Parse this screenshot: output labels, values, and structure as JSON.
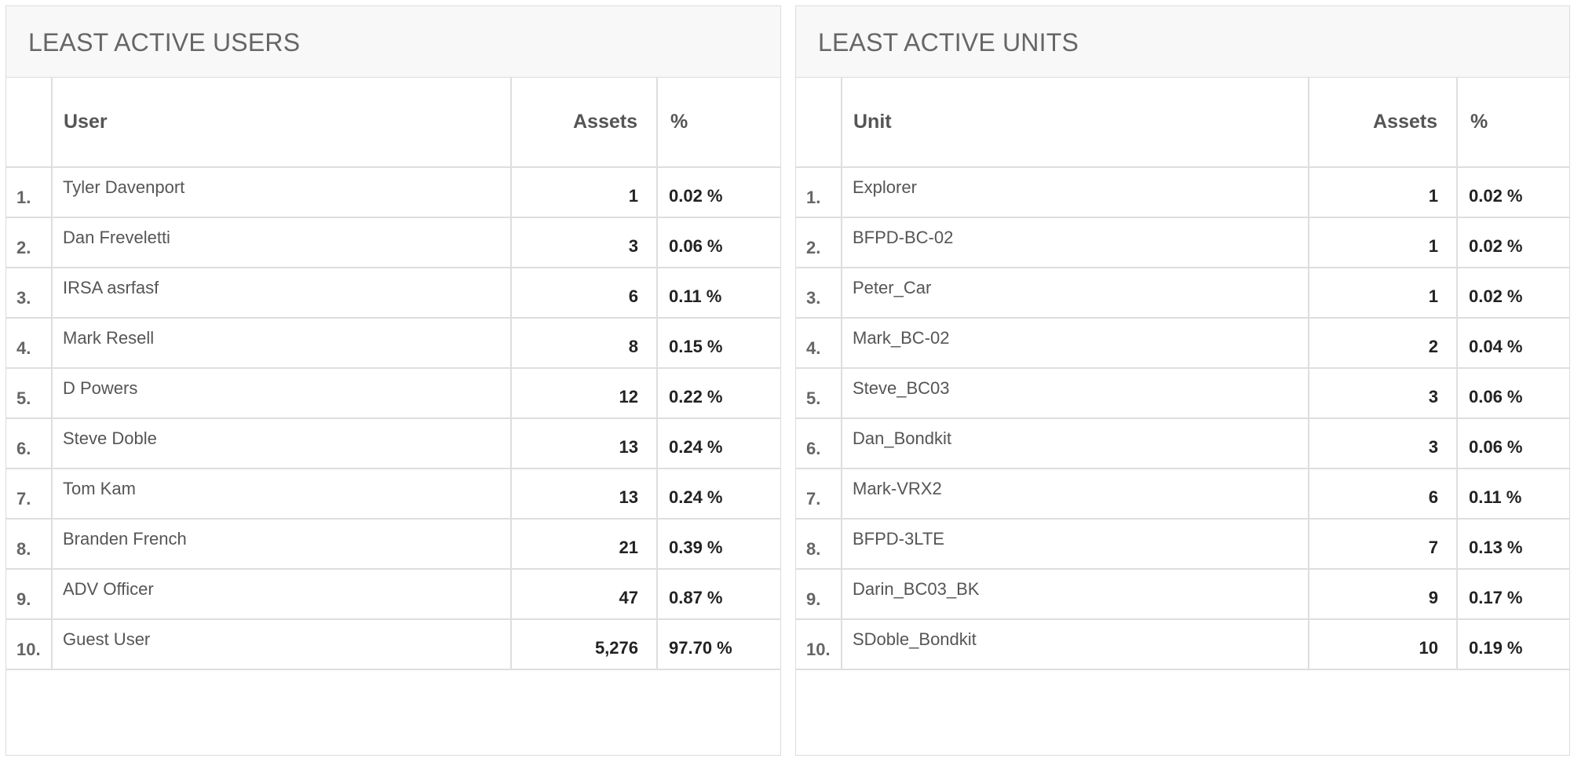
{
  "users_panel": {
    "title": "LEAST ACTIVE USERS",
    "columns": {
      "name": "User",
      "assets": "Assets",
      "pct": "%"
    },
    "rows": [
      {
        "rank": "1.",
        "name": "Tyler Davenport",
        "assets": "1",
        "pct": "0.02 %"
      },
      {
        "rank": "2.",
        "name": "Dan Freveletti",
        "assets": "3",
        "pct": "0.06 %"
      },
      {
        "rank": "3.",
        "name": "IRSA asrfasf",
        "assets": "6",
        "pct": "0.11 %"
      },
      {
        "rank": "4.",
        "name": "Mark Resell",
        "assets": "8",
        "pct": "0.15 %"
      },
      {
        "rank": "5.",
        "name": "D Powers",
        "assets": "12",
        "pct": "0.22 %"
      },
      {
        "rank": "6.",
        "name": "Steve Doble",
        "assets": "13",
        "pct": "0.24 %"
      },
      {
        "rank": "7.",
        "name": "Tom Kam",
        "assets": "13",
        "pct": "0.24 %"
      },
      {
        "rank": "8.",
        "name": "Branden French",
        "assets": "21",
        "pct": "0.39 %"
      },
      {
        "rank": "9.",
        "name": "ADV Officer",
        "assets": "47",
        "pct": "0.87 %"
      },
      {
        "rank": "10.",
        "name": "Guest User",
        "assets": "5,276",
        "pct": "97.70 %"
      }
    ]
  },
  "units_panel": {
    "title": "LEAST ACTIVE UNITS",
    "columns": {
      "name": "Unit",
      "assets": "Assets",
      "pct": "%"
    },
    "rows": [
      {
        "rank": "1.",
        "name": "Explorer",
        "assets": "1",
        "pct": "0.02 %"
      },
      {
        "rank": "2.",
        "name": "BFPD-BC-02",
        "assets": "1",
        "pct": "0.02 %"
      },
      {
        "rank": "3.",
        "name": "Peter_Car",
        "assets": "1",
        "pct": "0.02 %"
      },
      {
        "rank": "4.",
        "name": "Mark_BC-02",
        "assets": "2",
        "pct": "0.04 %"
      },
      {
        "rank": "5.",
        "name": "Steve_BC03",
        "assets": "3",
        "pct": "0.06 %"
      },
      {
        "rank": "6.",
        "name": "Dan_Bondkit",
        "assets": "3",
        "pct": "0.06 %"
      },
      {
        "rank": "7.",
        "name": "Mark-VRX2",
        "assets": "6",
        "pct": "0.11 %"
      },
      {
        "rank": "8.",
        "name": "BFPD-3LTE",
        "assets": "7",
        "pct": "0.13 %"
      },
      {
        "rank": "9.",
        "name": "Darin_BC03_BK",
        "assets": "9",
        "pct": "0.17 %"
      },
      {
        "rank": "10.",
        "name": "SDoble_Bondkit",
        "assets": "10",
        "pct": "0.19 %"
      }
    ]
  }
}
